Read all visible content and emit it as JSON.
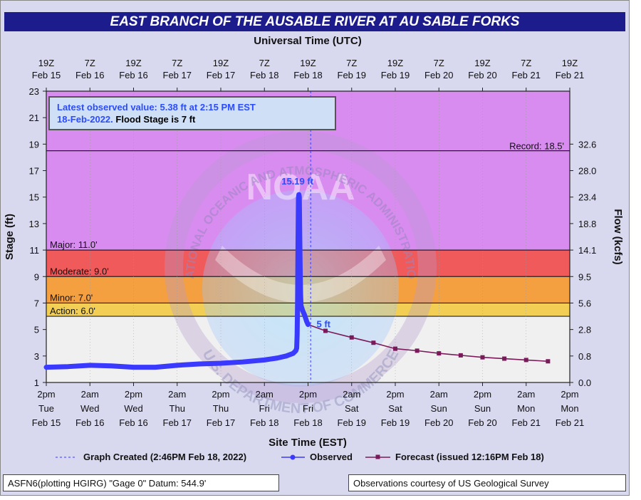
{
  "title": "EAST BRANCH OF THE AUSABLE RIVER AT AU SABLE FORKS",
  "top_axis_title": "Universal Time (UTC)",
  "bottom_axis_title": "Site Time (EST)",
  "ylabel_left": "Stage (ft)",
  "ylabel_right": "Flow (kcfs)",
  "latest": {
    "line1": "Latest observed value: 5.38 ft at 2:15 PM EST",
    "line2_blue": "18-Feb-2022.",
    "line2_black": "Flood Stage is 7 ft"
  },
  "footer": {
    "left": "ASFN6(plotting HGIRG) \"Gage 0\" Datum: 544.9'",
    "right": "Observations courtesy of US Geological Survey"
  },
  "legend": {
    "created": "Graph Created (2:46PM Feb 18, 2022)",
    "observed": "Observed",
    "forecast": "Forecast (issued 12:16PM Feb 18)"
  },
  "watermark": {
    "center": "NOAA",
    "ring_top": "NATIONAL OCEANIC AND ATMOSPHERIC ADMINISTRATION",
    "ring_bottom": "U.S. DEPARTMENT OF COMMERCE"
  },
  "colors": {
    "record_band": "#d98cf0",
    "major_band": "#f05a5a",
    "moderate_band": "#f5a040",
    "minor_band": "#f2ce55",
    "action_band": "#f3f36a",
    "normal_band": "#f0f0f0",
    "observed": "#3a3aff",
    "forecast": "#7a1a5a"
  },
  "chart_data": {
    "type": "line",
    "x_range": [
      0,
      6
    ],
    "x_note_units": "days from 2pm Tue Feb 15 (EST)",
    "ylim": [
      1,
      23
    ],
    "y_ticks": [
      1,
      3,
      5,
      7,
      9,
      11,
      13,
      15,
      17,
      19,
      21,
      23
    ],
    "flow_ticks": [
      {
        "stage": 19,
        "label": "32.6"
      },
      {
        "stage": 17,
        "label": "28.0"
      },
      {
        "stage": 15,
        "label": "23.4"
      },
      {
        "stage": 13,
        "label": "18.8"
      },
      {
        "stage": 11,
        "label": "14.1"
      },
      {
        "stage": 9,
        "label": "9.5"
      },
      {
        "stage": 7,
        "label": "5.6"
      },
      {
        "stage": 5,
        "label": "2.8"
      },
      {
        "stage": 3,
        "label": "0.8"
      },
      {
        "stage": 1,
        "label": "0.0"
      }
    ],
    "top_ticks": [
      {
        "x": 0,
        "l1": "19Z",
        "l2": "Feb 15"
      },
      {
        "x": 0.5,
        "l1": "7Z",
        "l2": "Feb 16"
      },
      {
        "x": 1,
        "l1": "19Z",
        "l2": "Feb 16"
      },
      {
        "x": 1.5,
        "l1": "7Z",
        "l2": "Feb 17"
      },
      {
        "x": 2,
        "l1": "19Z",
        "l2": "Feb 17"
      },
      {
        "x": 2.5,
        "l1": "7Z",
        "l2": "Feb 18"
      },
      {
        "x": 3,
        "l1": "19Z",
        "l2": "Feb 18"
      },
      {
        "x": 3.5,
        "l1": "7Z",
        "l2": "Feb 19"
      },
      {
        "x": 4,
        "l1": "19Z",
        "l2": "Feb 19"
      },
      {
        "x": 4.5,
        "l1": "7Z",
        "l2": "Feb 20"
      },
      {
        "x": 5,
        "l1": "19Z",
        "l2": "Feb 20"
      },
      {
        "x": 5.5,
        "l1": "7Z",
        "l2": "Feb 21"
      },
      {
        "x": 6,
        "l1": "19Z",
        "l2": "Feb 21"
      }
    ],
    "bottom_ticks": [
      {
        "x": 0,
        "l1": "2pm",
        "l2": "Tue",
        "l3": "Feb 15"
      },
      {
        "x": 0.5,
        "l1": "2am",
        "l2": "Wed",
        "l3": "Feb 16"
      },
      {
        "x": 1,
        "l1": "2pm",
        "l2": "Wed",
        "l3": "Feb 16"
      },
      {
        "x": 1.5,
        "l1": "2am",
        "l2": "Thu",
        "l3": "Feb 17"
      },
      {
        "x": 2,
        "l1": "2pm",
        "l2": "Thu",
        "l3": "Feb 17"
      },
      {
        "x": 2.5,
        "l1": "2am",
        "l2": "Fri",
        "l3": "Feb 18"
      },
      {
        "x": 3,
        "l1": "2pm",
        "l2": "Fri",
        "l3": "Feb 18"
      },
      {
        "x": 3.5,
        "l1": "2am",
        "l2": "Sat",
        "l3": "Feb 19"
      },
      {
        "x": 4,
        "l1": "2pm",
        "l2": "Sat",
        "l3": "Feb 19"
      },
      {
        "x": 4.5,
        "l1": "2am",
        "l2": "Sun",
        "l3": "Feb 20"
      },
      {
        "x": 5,
        "l1": "2pm",
        "l2": "Sun",
        "l3": "Feb 20"
      },
      {
        "x": 5.5,
        "l1": "2am",
        "l2": "Mon",
        "l3": "Feb 21"
      },
      {
        "x": 6,
        "l1": "2pm",
        "l2": "Mon",
        "l3": "Feb 21"
      }
    ],
    "stages": [
      {
        "name": "record",
        "label": "Record: 18.5'",
        "value": 18.5
      },
      {
        "name": "major",
        "label": "Major: 11.0'",
        "value": 11.0
      },
      {
        "name": "moderate",
        "label": "Moderate: 9.0'",
        "value": 9.0
      },
      {
        "name": "minor",
        "label": "Minor: 7.0'",
        "value": 7.0
      },
      {
        "name": "action",
        "label": "Action: 6.0'",
        "value": 6.0
      }
    ],
    "graph_created_x": 3.03,
    "peak_label": "15.19 ft",
    "forecast_label": "5 ft",
    "observed": [
      [
        0,
        2.15
      ],
      [
        0.25,
        2.2
      ],
      [
        0.5,
        2.3
      ],
      [
        0.75,
        2.25
      ],
      [
        1,
        2.15
      ],
      [
        1.25,
        2.15
      ],
      [
        1.5,
        2.3
      ],
      [
        1.75,
        2.4
      ],
      [
        2,
        2.45
      ],
      [
        2.25,
        2.55
      ],
      [
        2.5,
        2.7
      ],
      [
        2.65,
        2.85
      ],
      [
        2.75,
        3.0
      ],
      [
        2.83,
        3.2
      ],
      [
        2.86,
        3.4
      ],
      [
        2.87,
        3.6
      ],
      [
        2.875,
        4.6
      ],
      [
        2.88,
        7.0
      ],
      [
        2.885,
        11.3
      ],
      [
        2.89,
        14.9
      ],
      [
        2.895,
        15.19
      ],
      [
        2.9,
        15.0
      ],
      [
        2.905,
        12.0
      ],
      [
        2.91,
        9.6
      ],
      [
        2.915,
        7.6
      ],
      [
        2.92,
        6.8
      ],
      [
        2.94,
        6.4
      ],
      [
        2.96,
        6.1
      ],
      [
        2.97,
        5.9
      ],
      [
        2.985,
        5.6
      ],
      [
        3.0,
        5.38
      ]
    ],
    "forecast": [
      [
        3.0,
        5.38
      ],
      [
        3.2,
        4.9
      ],
      [
        3.5,
        4.4
      ],
      [
        3.75,
        4.0
      ],
      [
        4.0,
        3.55
      ],
      [
        4.25,
        3.4
      ],
      [
        4.5,
        3.2
      ],
      [
        4.75,
        3.05
      ],
      [
        5.0,
        2.9
      ],
      [
        5.25,
        2.8
      ],
      [
        5.5,
        2.7
      ],
      [
        5.75,
        2.6
      ]
    ]
  }
}
